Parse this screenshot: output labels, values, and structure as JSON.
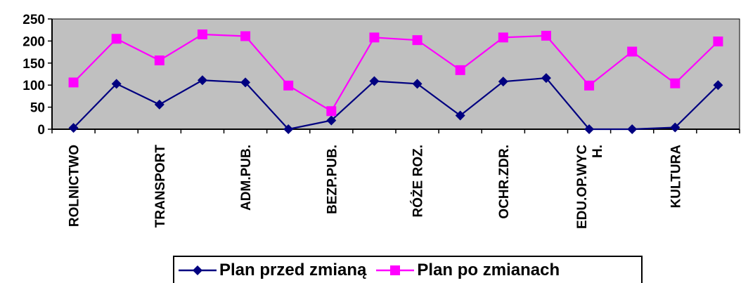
{
  "chart_data": {
    "type": "line",
    "categories": [
      "ROLNICTWO",
      "",
      "TRANSPORT",
      "",
      "ADM.PUB.",
      "",
      "BEZP.PUB.",
      "",
      "RÓŻE ROZ.",
      "",
      "OCHR.ZDR.",
      "",
      "EDU.OP.WYC\nH.",
      "",
      "KULTURA",
      ""
    ],
    "series": [
      {
        "name": "Plan przed zmianą",
        "color": "#000080",
        "marker": "diamond",
        "values": [
          3,
          103,
          56,
          111,
          106,
          0,
          20,
          109,
          103,
          31,
          108,
          116,
          0,
          0,
          4,
          100
        ]
      },
      {
        "name": "Plan po zmianach",
        "color": "#ff00ff",
        "marker": "square",
        "values": [
          106,
          205,
          156,
          215,
          211,
          99,
          41,
          208,
          202,
          134,
          208,
          212,
          99,
          176,
          104,
          199
        ]
      }
    ],
    "yticks": [
      0,
      50,
      100,
      150,
      200,
      250
    ],
    "ylim": [
      0,
      250
    ],
    "plot_background": "#c0c0c0",
    "grid": false,
    "legend_position": "bottom"
  }
}
